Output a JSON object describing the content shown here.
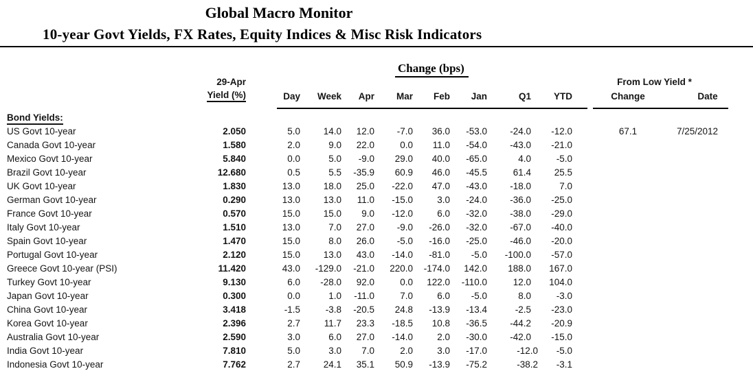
{
  "header": {
    "title": "Global Macro Monitor",
    "subtitle": "10-year Govt Yields, FX Rates, Equity Indices & Misc Risk Indicators"
  },
  "colors": {
    "background": "#ffffff",
    "text": "#000000"
  },
  "table": {
    "change_section_label": "Change (bps)",
    "yield_header": {
      "line1": "29-Apr",
      "line2": "Yield (%)"
    },
    "change_columns": [
      "Day",
      "Week",
      "Apr",
      "Mar",
      "Feb",
      "Jan",
      "Q1",
      "YTD"
    ],
    "from_low": {
      "label": "From Low Yield *",
      "columns": [
        "Change",
        "Date"
      ]
    },
    "section_label": "Bond Yields:",
    "rows": [
      {
        "label": "US Govt 10-year",
        "yield": "2.050",
        "changes": [
          "5.0",
          "14.0",
          "12.0",
          "-7.0",
          "36.0",
          "-53.0",
          "-24.0",
          "-12.0"
        ],
        "from_low_change": "67.1",
        "from_low_date": "7/25/2012"
      },
      {
        "label": "Canada Govt 10-year",
        "yield": "1.580",
        "changes": [
          "2.0",
          "9.0",
          "22.0",
          "0.0",
          "11.0",
          "-54.0",
          "-43.0",
          "-21.0"
        ],
        "from_low_change": "",
        "from_low_date": ""
      },
      {
        "label": "Mexico Govt 10-year",
        "yield": "5.840",
        "changes": [
          "0.0",
          "5.0",
          "-9.0",
          "29.0",
          "40.0",
          "-65.0",
          "4.0",
          "-5.0"
        ],
        "from_low_change": "",
        "from_low_date": ""
      },
      {
        "label": "Brazil Govt 10-year",
        "yield": "12.680",
        "changes": [
          "0.5",
          "5.5",
          "-35.9",
          "60.9",
          "46.0",
          "-45.5",
          "61.4",
          "25.5"
        ],
        "from_low_change": "",
        "from_low_date": ""
      },
      {
        "label": "UK Govt 10-year",
        "yield": "1.830",
        "changes": [
          "13.0",
          "18.0",
          "25.0",
          "-22.0",
          "47.0",
          "-43.0",
          "-18.0",
          "7.0"
        ],
        "from_low_change": "",
        "from_low_date": ""
      },
      {
        "label": "German Govt 10-year",
        "yield": "0.290",
        "changes": [
          "13.0",
          "13.0",
          "11.0",
          "-15.0",
          "3.0",
          "-24.0",
          "-36.0",
          "-25.0"
        ],
        "from_low_change": "",
        "from_low_date": ""
      },
      {
        "label": "France Govt 10-year",
        "yield": "0.570",
        "changes": [
          "15.0",
          "15.0",
          "9.0",
          "-12.0",
          "6.0",
          "-32.0",
          "-38.0",
          "-29.0"
        ],
        "from_low_change": "",
        "from_low_date": ""
      },
      {
        "label": "Italy Govt 10-year",
        "yield": "1.510",
        "changes": [
          "13.0",
          "7.0",
          "27.0",
          "-9.0",
          "-26.0",
          "-32.0",
          "-67.0",
          "-40.0"
        ],
        "from_low_change": "",
        "from_low_date": ""
      },
      {
        "label": "Spain Govt 10-year",
        "yield": "1.470",
        "changes": [
          "15.0",
          "8.0",
          "26.0",
          "-5.0",
          "-16.0",
          "-25.0",
          "-46.0",
          "-20.0"
        ],
        "from_low_change": "",
        "from_low_date": ""
      },
      {
        "label": "Portugal Govt 10-year",
        "yield": "2.120",
        "changes": [
          "15.0",
          "13.0",
          "43.0",
          "-14.0",
          "-81.0",
          "-5.0",
          "-100.0",
          "-57.0"
        ],
        "from_low_change": "",
        "from_low_date": ""
      },
      {
        "label": "Greece Govt 10-year (PSI)",
        "yield": "11.420",
        "changes": [
          "43.0",
          "-129.0",
          "-21.0",
          "220.0",
          "-174.0",
          "142.0",
          "188.0",
          "167.0"
        ],
        "from_low_change": "",
        "from_low_date": ""
      },
      {
        "label": "Turkey Govt 10-year",
        "yield": "9.130",
        "changes": [
          "6.0",
          "-28.0",
          "92.0",
          "0.0",
          "122.0",
          "-110.0",
          "12.0",
          "104.0"
        ],
        "from_low_change": "",
        "from_low_date": ""
      },
      {
        "label": "Japan Govt 10-year",
        "yield": "0.300",
        "changes": [
          "0.0",
          "1.0",
          "-11.0",
          "7.0",
          "6.0",
          "-5.0",
          "8.0",
          "-3.0"
        ],
        "from_low_change": "",
        "from_low_date": ""
      },
      {
        "label": "China Govt 10-year",
        "yield": "3.418",
        "changes": [
          "-1.5",
          "-3.8",
          "-20.5",
          "24.8",
          "-13.9",
          "-13.4",
          "-2.5",
          "-23.0"
        ],
        "from_low_change": "",
        "from_low_date": ""
      },
      {
        "label": "Korea Govt 10-year",
        "yield": "2.396",
        "changes": [
          "2.7",
          "11.7",
          "23.3",
          "-18.5",
          "10.8",
          "-36.5",
          "-44.2",
          "-20.9"
        ],
        "from_low_change": "",
        "from_low_date": ""
      },
      {
        "label": "Australia Govt 10-year",
        "yield": "2.590",
        "changes": [
          "3.0",
          "6.0",
          "27.0",
          "-14.0",
          "2.0",
          "-30.0",
          "-42.0",
          "-15.0"
        ],
        "from_low_change": "",
        "from_low_date": ""
      },
      {
        "label": "India Govt 10-year",
        "yield": "7.810",
        "changes": [
          "5.0",
          "3.0",
          "7.0",
          "2.0",
          "3.0",
          "-17.0",
          "-12.0",
          "-5.0"
        ],
        "from_low_change": "",
        "from_low_date": ""
      },
      {
        "label": "Indonesia Govt 10-year",
        "yield": "7.762",
        "changes": [
          "2.7",
          "24.1",
          "35.1",
          "50.9",
          "-13.9",
          "-75.2",
          "-38.2",
          "-3.1"
        ],
        "from_low_change": "",
        "from_low_date": ""
      }
    ]
  }
}
